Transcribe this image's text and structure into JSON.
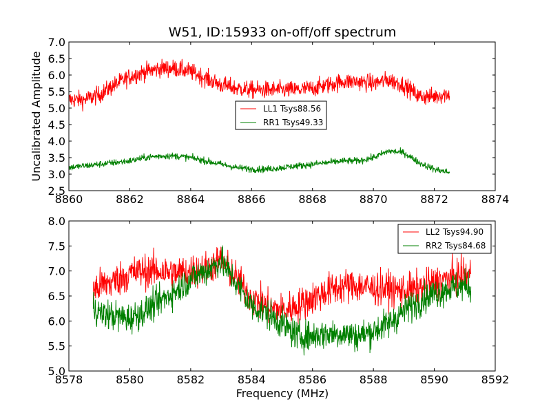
{
  "chart_data": [
    {
      "type": "line",
      "title": "W51, ID:15933 on-off/off spectrum",
      "xlabel": "",
      "ylabel": "Uncalibrated Amplitude",
      "xlim": [
        8860,
        8874
      ],
      "ylim": [
        2.5,
        7.0
      ],
      "xticks": [
        "8860",
        "8862",
        "8864",
        "8866",
        "8868",
        "8870",
        "8872",
        "8874"
      ],
      "yticks": [
        "2.5",
        "3.0",
        "3.5",
        "4.0",
        "4.5",
        "5.0",
        "5.5",
        "6.0",
        "6.5",
        "7.0"
      ],
      "legend_position": "center",
      "series": [
        {
          "name": "LL1 Tsys88.56",
          "color": "#ff0000",
          "noise": 0.13,
          "x": [
            8860.0,
            8860.5,
            8861.0,
            8861.5,
            8862.0,
            8862.5,
            8863.0,
            8863.5,
            8864.0,
            8864.5,
            8865.0,
            8865.5,
            8866.0,
            8866.5,
            8867.0,
            8867.5,
            8868.0,
            8868.5,
            8869.0,
            8869.5,
            8870.0,
            8870.5,
            8871.0,
            8871.5,
            8872.0,
            8872.5
          ],
          "values": [
            5.25,
            5.25,
            5.4,
            5.7,
            5.95,
            6.1,
            6.2,
            6.2,
            6.1,
            5.9,
            5.7,
            5.6,
            5.55,
            5.55,
            5.55,
            5.55,
            5.6,
            5.7,
            5.8,
            5.8,
            5.75,
            5.85,
            5.7,
            5.35,
            5.35,
            5.45
          ]
        },
        {
          "name": "RR1 Tsys49.33",
          "color": "#008000",
          "noise": 0.05,
          "x": [
            8860.0,
            8860.5,
            8861.0,
            8861.5,
            8862.0,
            8862.5,
            8863.0,
            8863.5,
            8864.0,
            8864.5,
            8865.0,
            8865.5,
            8866.0,
            8866.5,
            8867.0,
            8867.5,
            8868.0,
            8868.5,
            8869.0,
            8869.5,
            8870.0,
            8870.5,
            8871.0,
            8871.5,
            8872.0,
            8872.5
          ],
          "values": [
            3.2,
            3.25,
            3.3,
            3.35,
            3.4,
            3.5,
            3.55,
            3.55,
            3.5,
            3.4,
            3.3,
            3.2,
            3.15,
            3.15,
            3.2,
            3.25,
            3.3,
            3.35,
            3.4,
            3.4,
            3.5,
            3.7,
            3.65,
            3.35,
            3.15,
            3.05
          ]
        }
      ]
    },
    {
      "type": "line",
      "title": "",
      "xlabel": "Frequency (MHz)",
      "ylabel": "",
      "xlim": [
        8578,
        8592
      ],
      "ylim": [
        5.0,
        8.0
      ],
      "xticks": [
        "8578",
        "8580",
        "8582",
        "8584",
        "8586",
        "8588",
        "8590",
        "8592"
      ],
      "yticks": [
        "5.0",
        "5.5",
        "6.0",
        "6.5",
        "7.0",
        "7.5",
        "8.0"
      ],
      "legend_position": "top-right",
      "series": [
        {
          "name": "LL2 Tsys94.90",
          "color": "#ff0000",
          "noise": 0.17,
          "x": [
            8578.8,
            8579.0,
            8579.5,
            8580.0,
            8580.5,
            8581.0,
            8581.5,
            8582.0,
            8582.5,
            8583.0,
            8583.5,
            8584.0,
            8584.5,
            8585.0,
            8585.5,
            8586.0,
            8586.5,
            8587.0,
            8587.5,
            8588.0,
            8588.5,
            8589.0,
            8589.5,
            8590.0,
            8590.5,
            8591.0,
            8591.2
          ],
          "values": [
            6.6,
            6.7,
            6.8,
            6.95,
            7.0,
            7.0,
            6.95,
            7.0,
            7.05,
            7.2,
            6.85,
            6.45,
            6.3,
            6.2,
            6.3,
            6.45,
            6.6,
            6.7,
            6.7,
            6.65,
            6.65,
            6.6,
            6.65,
            6.75,
            6.85,
            6.9,
            6.95
          ]
        },
        {
          "name": "RR2 Tsys84.68",
          "color": "#008000",
          "noise": 0.15,
          "x": [
            8578.8,
            8579.0,
            8579.5,
            8580.0,
            8580.5,
            8581.0,
            8581.5,
            8582.0,
            8582.5,
            8583.0,
            8583.5,
            8584.0,
            8584.5,
            8585.0,
            8585.5,
            8586.0,
            8586.5,
            8587.0,
            8587.5,
            8588.0,
            8588.5,
            8589.0,
            8589.5,
            8590.0,
            8590.5,
            8591.0,
            8591.2
          ],
          "values": [
            6.3,
            6.15,
            6.1,
            6.05,
            6.2,
            6.4,
            6.6,
            6.85,
            7.0,
            7.2,
            6.75,
            6.3,
            6.15,
            5.95,
            5.7,
            5.7,
            5.75,
            5.75,
            5.7,
            5.8,
            5.95,
            6.2,
            6.4,
            6.55,
            6.65,
            6.7,
            6.7
          ]
        }
      ]
    }
  ]
}
